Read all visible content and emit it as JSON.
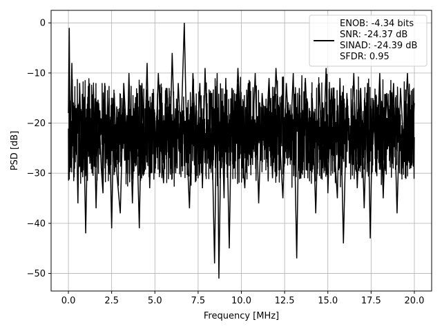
{
  "chart_data": {
    "type": "line",
    "title": "",
    "xlabel": "Frequency [MHz]",
    "ylabel": "PSD [dB]",
    "xlim": [
      -1.0,
      21.0
    ],
    "ylim": [
      -53.5,
      2.5
    ],
    "xticks": [
      0.0,
      2.5,
      5.0,
      7.5,
      10.0,
      12.5,
      15.0,
      17.5,
      20.0
    ],
    "xtick_labels": [
      "0.0",
      "2.5",
      "5.0",
      "7.5",
      "10.0",
      "12.5",
      "15.0",
      "17.5",
      "20.0"
    ],
    "yticks": [
      0,
      -10,
      -20,
      -30,
      -40,
      -50
    ],
    "ytick_labels": [
      "0",
      "−10",
      "−20",
      "−30",
      "−40",
      "−50"
    ],
    "grid": true,
    "legend": {
      "placement": "top-right",
      "entries": [
        "ENOB: -4.34 bits",
        "SNR: -24.37 dB",
        "SINAD: -24.39 dB",
        "SFDR: 0.95"
      ]
    },
    "series": [
      {
        "color": "#000000",
        "x": [
          0.0,
          0.05,
          0.1,
          0.2,
          0.3,
          0.45,
          0.55,
          0.65,
          0.75,
          0.85,
          1.0,
          1.15,
          1.3,
          1.45,
          1.6,
          1.75,
          1.9,
          2.0,
          2.1,
          2.2,
          2.35,
          2.5,
          2.65,
          2.8,
          3.0,
          3.2,
          3.4,
          3.5,
          3.7,
          3.85,
          4.0,
          4.1,
          4.25,
          4.4,
          4.55,
          4.7,
          4.85,
          5.0,
          5.2,
          5.35,
          5.5,
          5.7,
          5.85,
          6.0,
          6.2,
          6.35,
          6.5,
          6.7,
          6.85,
          7.0,
          7.2,
          7.4,
          7.6,
          7.75,
          7.9,
          8.05,
          8.25,
          8.45,
          8.6,
          8.7,
          8.85,
          9.0,
          9.1,
          9.3,
          9.45,
          9.6,
          9.8,
          10.0,
          10.2,
          10.4,
          10.6,
          10.8,
          11.0,
          11.2,
          11.4,
          11.6,
          11.8,
          12.0,
          12.2,
          12.4,
          12.6,
          12.8,
          13.0,
          13.2,
          13.35,
          13.5,
          13.7,
          13.9,
          14.1,
          14.3,
          14.5,
          14.7,
          14.9,
          15.0,
          15.2,
          15.4,
          15.55,
          15.7,
          15.9,
          16.1,
          16.3,
          16.5,
          16.7,
          16.9,
          17.1,
          17.3,
          17.45,
          17.6,
          17.8,
          18.0,
          18.2,
          18.4,
          18.6,
          18.8,
          19.0,
          19.2,
          19.4,
          19.6,
          19.8,
          20.0
        ],
        "y": [
          -18,
          -1,
          -26,
          -8,
          -27,
          -17,
          -36,
          -12,
          -25,
          -15,
          -42,
          -14,
          -28,
          -13,
          -37,
          -16,
          -29,
          -34,
          -12,
          -26,
          -15,
          -41,
          -14,
          -30,
          -38,
          -12,
          -25,
          -10,
          -36,
          -16,
          -28,
          -41,
          -12,
          -26,
          -8,
          -33,
          -14,
          -30,
          -10,
          -24,
          -32,
          -13,
          -27,
          -6,
          -30,
          -12,
          -23,
          0,
          -25,
          -37,
          -10,
          -28,
          -12,
          -33,
          -9,
          -26,
          -14,
          -48,
          -10,
          -51,
          -16,
          -35,
          -11,
          -45,
          -13,
          -29,
          -9,
          -24,
          -33,
          -12,
          -27,
          -10,
          -36,
          -14,
          -25,
          -11,
          -31,
          -9,
          -22,
          -35,
          -12,
          -26,
          -10,
          -47,
          -13,
          -30,
          -11,
          -28,
          -15,
          -38,
          -12,
          -29,
          -9,
          -34,
          -13,
          -26,
          -35,
          -11,
          -44,
          -14,
          -28,
          -10,
          -33,
          -13,
          -37,
          -12,
          -43,
          -15,
          -30,
          -10,
          -35,
          -14,
          -27,
          -12,
          -38,
          -13,
          -26,
          -10,
          -29,
          -16
        ]
      }
    ]
  }
}
